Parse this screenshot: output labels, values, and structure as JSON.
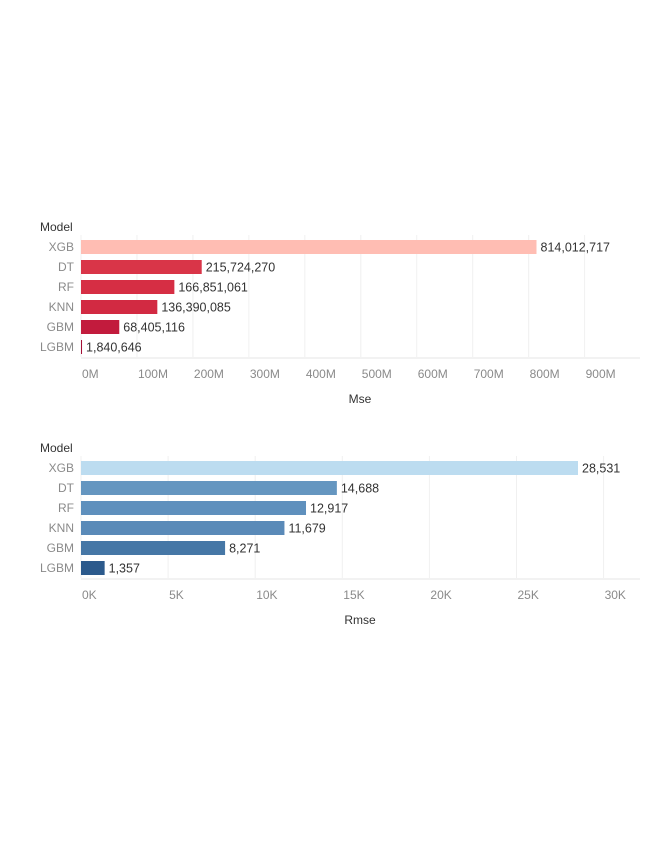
{
  "chart_data": [
    {
      "type": "bar",
      "orientation": "horizontal",
      "row_header": "Model",
      "categories": [
        "XGB",
        "DT",
        "RF",
        "KNN",
        "GBM",
        "LGBM"
      ],
      "values": [
        814012717,
        215724270,
        166851061,
        136390085,
        68405116,
        1840646
      ],
      "value_labels": [
        "814,012,717",
        "215,724,270",
        "166,851,061",
        "136,390,085",
        "68,405,116",
        "1,840,646"
      ],
      "xlabel": "Mse",
      "xlim": [
        0,
        1000000000
      ],
      "xticks": [
        0,
        100000000,
        200000000,
        300000000,
        400000000,
        500000000,
        600000000,
        700000000,
        800000000,
        900000000
      ],
      "xtick_labels": [
        "0M",
        "100M",
        "200M",
        "300M",
        "400M",
        "500M",
        "600M",
        "700M",
        "800M",
        "900M"
      ],
      "colors": [
        "#ffbdb3",
        "#d93548",
        "#d62e44",
        "#d22a42",
        "#c21b3d",
        "#a50f36"
      ],
      "grid": true
    },
    {
      "type": "bar",
      "orientation": "horizontal",
      "row_header": "Model",
      "categories": [
        "XGB",
        "DT",
        "RF",
        "KNN",
        "GBM",
        "LGBM"
      ],
      "values": [
        28531,
        14688,
        12917,
        11679,
        8271,
        1357
      ],
      "value_labels": [
        "28,531",
        "14,688",
        "12,917",
        "11,679",
        "8,271",
        "1,357"
      ],
      "xlabel": "Rmse",
      "xlim": [
        0,
        32000
      ],
      "xticks": [
        0,
        5000,
        10000,
        15000,
        20000,
        25000,
        30000
      ],
      "xtick_labels": [
        "0K",
        "5K",
        "10K",
        "15K",
        "20K",
        "25K",
        "30K"
      ],
      "colors": [
        "#bcdcf0",
        "#6596c0",
        "#5f90bd",
        "#5a8ab8",
        "#4677a6",
        "#2c5a8c"
      ],
      "grid": true
    }
  ]
}
